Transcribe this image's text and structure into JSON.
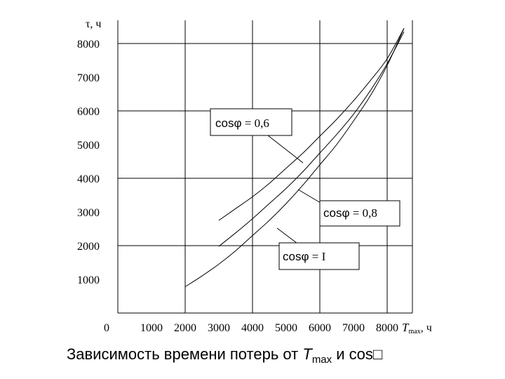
{
  "chart_data": {
    "type": "line",
    "title": "",
    "ylabel": "τ, ч",
    "xlabel_main": "T",
    "xlabel_sub": "max",
    "xlabel_unit": ", ч",
    "origin_label": "0",
    "xlim": [
      0,
      8700
    ],
    "ylim": [
      0,
      8700
    ],
    "x_ticks": [
      1000,
      2000,
      3000,
      4000,
      5000,
      6000,
      7000,
      8000
    ],
    "x_tick_labels": [
      "1000",
      "2000",
      "3000",
      "4000",
      "5000",
      "6000",
      "7000",
      "8000"
    ],
    "y_ticks": [
      1000,
      2000,
      3000,
      4000,
      5000,
      6000,
      7000,
      8000
    ],
    "y_tick_labels": [
      "1000",
      "2000",
      "3000",
      "4000",
      "5000",
      "6000",
      "7000",
      "8000"
    ],
    "grid": true,
    "series": [
      {
        "name": "cosφ = 0,6",
        "label_prefix": "cosφ",
        "label_suffix": " = 0,6",
        "x": [
          3000,
          3500,
          4000,
          4500,
          5000,
          5500,
          6000,
          6500,
          7000,
          7500,
          8000,
          8500
        ],
        "y": [
          2750,
          3100,
          3450,
          3850,
          4300,
          4750,
          5250,
          5750,
          6300,
          6900,
          7550,
          8450
        ]
      },
      {
        "name": "cosφ = 0,8",
        "label_prefix": "cosφ",
        "label_suffix": " = 0,8",
        "x": [
          3000,
          3500,
          4000,
          4500,
          5000,
          5500,
          6000,
          6500,
          7000,
          7500,
          8000,
          8500
        ],
        "y": [
          1980,
          2380,
          2800,
          3250,
          3700,
          4200,
          4750,
          5300,
          5900,
          6600,
          7400,
          8350
        ]
      },
      {
        "name": "cosφ = I",
        "label_prefix": "cosφ",
        "label_suffix": " = I",
        "x": [
          2000,
          2500,
          3000,
          3500,
          4000,
          4500,
          5000,
          5500,
          6000,
          6500,
          7000,
          7500,
          8000,
          8500
        ],
        "y": [
          780,
          1100,
          1450,
          1850,
          2300,
          2750,
          3250,
          3800,
          4400,
          5000,
          5700,
          6450,
          7350,
          8450
        ]
      }
    ]
  },
  "caption": {
    "text_before": "Зависимость времени потерь от ",
    "t_symbol": "T",
    "t_sub": "max",
    "text_mid": " и cos",
    "missing_glyph": "□"
  }
}
